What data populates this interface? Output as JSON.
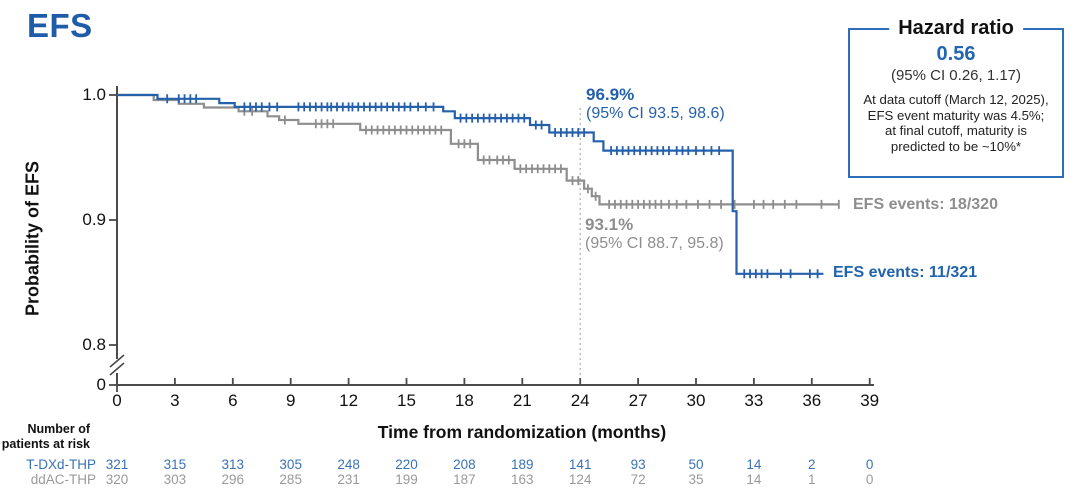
{
  "title": "EFS",
  "colors": {
    "blue": "#2560ab",
    "gray": "#8e8e8e",
    "title_blue": "#1e5ca9",
    "box_border": "#2e6db8",
    "number_blue": "#3a72b6",
    "number_gray": "#9a9a9a",
    "axis": "#4a4a4a",
    "dotted": "#b5b5b5"
  },
  "hazard_box": {
    "title": "Hazard ratio",
    "value": "0.56",
    "ci": "(95% CI 0.26, 1.17)",
    "note_lines": [
      "At data cutoff (March 12, 2025),",
      "EFS event maturity was 4.5%;",
      "at final cutoff, maturity is",
      "predicted to be ~10%*"
    ]
  },
  "annotations": {
    "tdxd": {
      "pct": "96.9%",
      "ci": "(95% CI 93.5, 98.6)"
    },
    "ddac": {
      "pct": "93.1%",
      "ci": "(95% CI 88.7, 95.8)"
    },
    "tdxd_events": "EFS events: 11/321",
    "ddac_events": "EFS events: 18/320"
  },
  "at_risk": {
    "header_lines": [
      "Number of",
      "patients at risk"
    ],
    "rows": [
      {
        "label": "T-DXd-THP",
        "color_key": "number_blue",
        "values": [
          321,
          315,
          313,
          305,
          248,
          220,
          208,
          189,
          141,
          93,
          50,
          14,
          2,
          0
        ]
      },
      {
        "label": "ddAC-THP",
        "color_key": "number_gray",
        "values": [
          320,
          303,
          296,
          285,
          231,
          199,
          187,
          163,
          124,
          72,
          35,
          14,
          1,
          0
        ]
      }
    ]
  },
  "chart_data": {
    "type": "line",
    "subtype": "kaplan-meier-step",
    "title": "EFS",
    "xlabel": "Time from randomization (months)",
    "ylabel": "Probability of EFS",
    "x_ticks": [
      0,
      3,
      6,
      9,
      12,
      15,
      18,
      21,
      24,
      27,
      30,
      33,
      36,
      39
    ],
    "y_ticks": [
      {
        "label": "1.0",
        "value": 1.0
      },
      {
        "label": "0.9",
        "value": 0.9
      },
      {
        "label": "0.8",
        "value": 0.8
      },
      {
        "label": "0",
        "value": 0,
        "on_axis": true
      }
    ],
    "xlim": [
      0,
      39
    ],
    "ylim_display": [
      0.78,
      1.005
    ],
    "axis_break": true,
    "grid": false,
    "reference_line_x": 24,
    "estimates_at_24_months": {
      "T-DXd-THP": 96.9,
      "ddAC-THP": 93.1
    },
    "series": [
      {
        "name": "ddAC-THP",
        "color_key": "gray",
        "end": 37.4,
        "steps": [
          [
            0,
            1.0
          ],
          [
            1.9,
            0.996
          ],
          [
            3.2,
            0.993
          ],
          [
            4.5,
            0.99
          ],
          [
            6.3,
            0.987
          ],
          [
            7.8,
            0.983
          ],
          [
            8.4,
            0.98
          ],
          [
            9.4,
            0.977
          ],
          [
            12.6,
            0.972
          ],
          [
            17.3,
            0.961
          ],
          [
            18.7,
            0.948
          ],
          [
            20.6,
            0.941
          ],
          [
            23.3,
            0.9315
          ],
          [
            24.2,
            0.925
          ],
          [
            24.6,
            0.919
          ],
          [
            25.0,
            0.9125
          ]
        ],
        "censors": [
          6.6,
          7.0,
          8.7,
          10.3,
          10.6,
          10.9,
          11.2,
          12.9,
          13.2,
          13.5,
          13.8,
          14.1,
          14.4,
          14.7,
          15.0,
          15.3,
          15.6,
          15.9,
          16.2,
          16.5,
          16.8,
          17.7,
          18.0,
          18.3,
          19.0,
          19.3,
          19.7,
          20.0,
          20.3,
          20.9,
          21.2,
          21.5,
          21.8,
          22.1,
          22.4,
          22.7,
          23.0,
          23.6,
          23.9,
          24.4,
          24.8,
          25.5,
          25.8,
          26.1,
          26.4,
          26.7,
          27.0,
          27.3,
          27.6,
          27.9,
          28.2,
          28.6,
          29.0,
          29.5,
          30.1,
          30.7,
          31.3,
          32.0,
          33.0,
          33.5,
          34.0,
          34.6,
          35.2,
          36.5,
          37.4
        ]
      },
      {
        "name": "T-DXd-THP",
        "color_key": "blue",
        "end": 36.6,
        "steps": [
          [
            0,
            1.0
          ],
          [
            2.1,
            0.997
          ],
          [
            5.3,
            0.9935
          ],
          [
            6.1,
            0.9905
          ],
          [
            16.9,
            0.987
          ],
          [
            17.5,
            0.9815
          ],
          [
            21.4,
            0.976
          ],
          [
            22.4,
            0.97
          ],
          [
            24.7,
            0.963
          ],
          [
            25.2,
            0.9555
          ],
          [
            31.9,
            0.907
          ],
          [
            32.1,
            0.857
          ]
        ],
        "censors": [
          2.6,
          3.2,
          3.5,
          3.8,
          4.1,
          6.6,
          6.9,
          7.2,
          7.5,
          7.9,
          8.3,
          9.4,
          9.7,
          10.0,
          10.3,
          10.6,
          10.9,
          11.1,
          11.4,
          11.7,
          12.0,
          12.2,
          12.5,
          12.8,
          13.1,
          13.4,
          13.7,
          14.0,
          14.3,
          14.6,
          14.9,
          15.2,
          15.6,
          16.0,
          16.4,
          17.8,
          18.1,
          18.4,
          18.7,
          19.0,
          19.3,
          19.6,
          19.9,
          20.2,
          20.5,
          20.8,
          21.1,
          21.7,
          22.0,
          22.7,
          23.0,
          23.3,
          23.6,
          23.9,
          24.2,
          25.6,
          25.9,
          26.2,
          26.5,
          26.8,
          27.1,
          27.4,
          27.7,
          28.0,
          28.3,
          28.6,
          29.0,
          29.3,
          29.6,
          30.0,
          30.4,
          30.8,
          31.2,
          32.5,
          32.8,
          33.1,
          33.4,
          33.7,
          34.4,
          34.9,
          35.9,
          36.3
        ]
      }
    ]
  }
}
